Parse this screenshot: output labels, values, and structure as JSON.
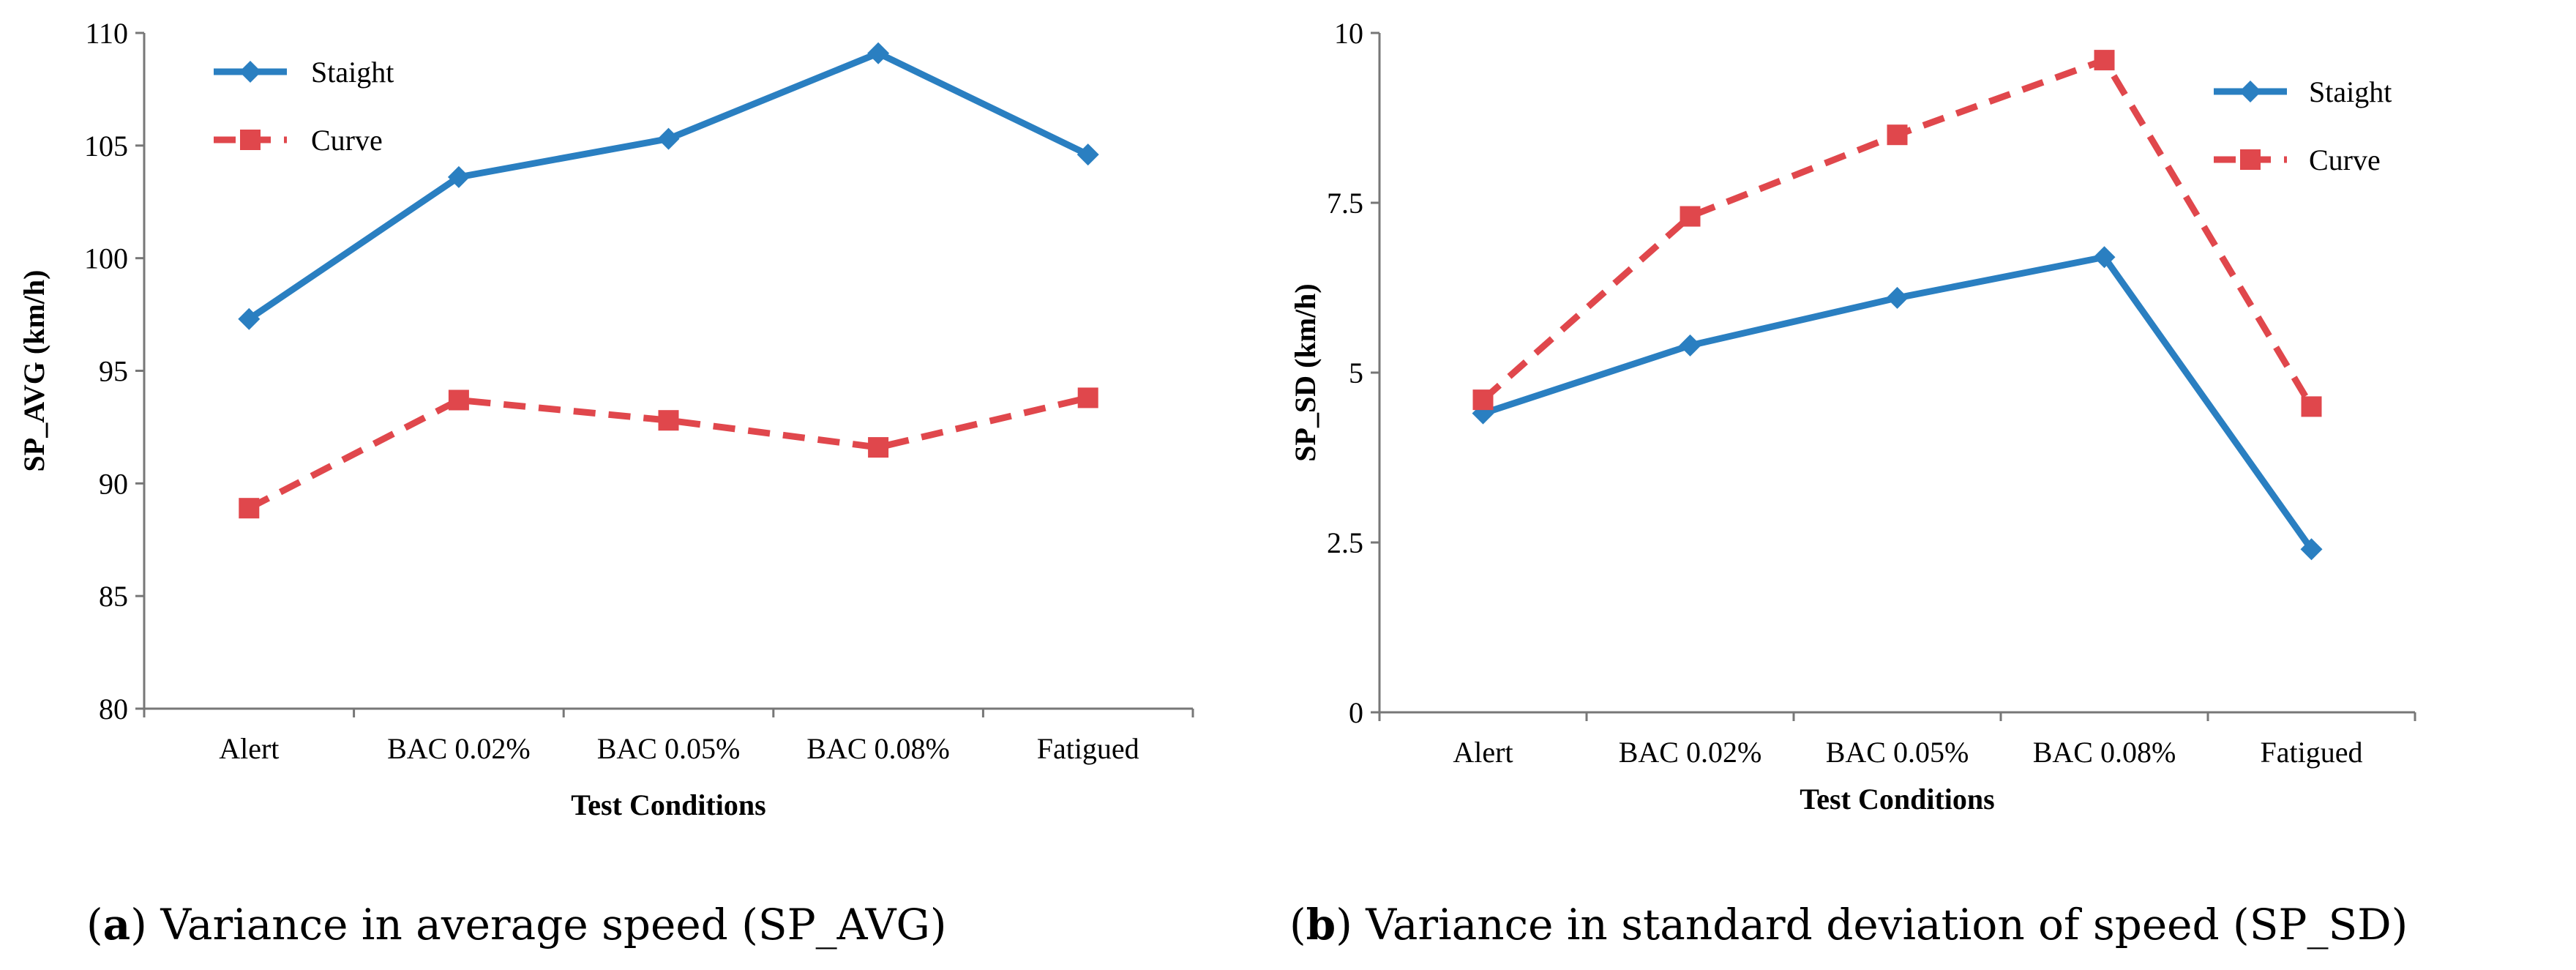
{
  "chart_data": [
    {
      "type": "line",
      "panel_label": "a",
      "caption": "Variance in average speed (SP_AVG)",
      "categories": [
        "Alert",
        "BAC 0.02%",
        "BAC 0.05%",
        "BAC 0.08%",
        "Fatigued"
      ],
      "series": [
        {
          "name": "Staight",
          "values": [
            97.3,
            103.6,
            105.3,
            109.1,
            104.6
          ],
          "color": "#2a7fc1",
          "dashed": false,
          "marker": "diamond"
        },
        {
          "name": "Curve",
          "values": [
            88.9,
            93.7,
            92.8,
            91.6,
            93.8
          ],
          "color": "#e0474c",
          "dashed": true,
          "marker": "square"
        }
      ],
      "xlabel": "Test Conditions",
      "ylabel": "SP_AVG (km/h)",
      "ylim": [
        80,
        110
      ],
      "yticks": [
        80,
        85,
        90,
        95,
        100,
        105,
        110
      ],
      "ytick_labels": [
        "80",
        "85",
        "90",
        "95",
        "100",
        "105",
        "110"
      ],
      "legend": "top-left",
      "grid": false
    },
    {
      "type": "line",
      "panel_label": "b",
      "caption": "Variance in standard deviation of speed (SP_SD)",
      "categories": [
        "Alert",
        "BAC 0.02%",
        "BAC 0.05%",
        "BAC 0.08%",
        "Fatigued"
      ],
      "series": [
        {
          "name": "Staight",
          "values": [
            4.4,
            5.4,
            6.1,
            6.7,
            2.4
          ],
          "color": "#2a7fc1",
          "dashed": false,
          "marker": "diamond"
        },
        {
          "name": "Curve",
          "values": [
            4.6,
            7.3,
            8.5,
            9.6,
            4.5
          ],
          "color": "#e0474c",
          "dashed": true,
          "marker": "square"
        }
      ],
      "xlabel": "Test Conditions",
      "ylabel": "SP_SD (km/h)",
      "ylim": [
        0,
        10
      ],
      "yticks": [
        0,
        2.5,
        5,
        7.5,
        10
      ],
      "ytick_labels": [
        "0",
        "2.5",
        "5",
        "7.5",
        "10"
      ],
      "legend": "top-right",
      "grid": false
    }
  ]
}
